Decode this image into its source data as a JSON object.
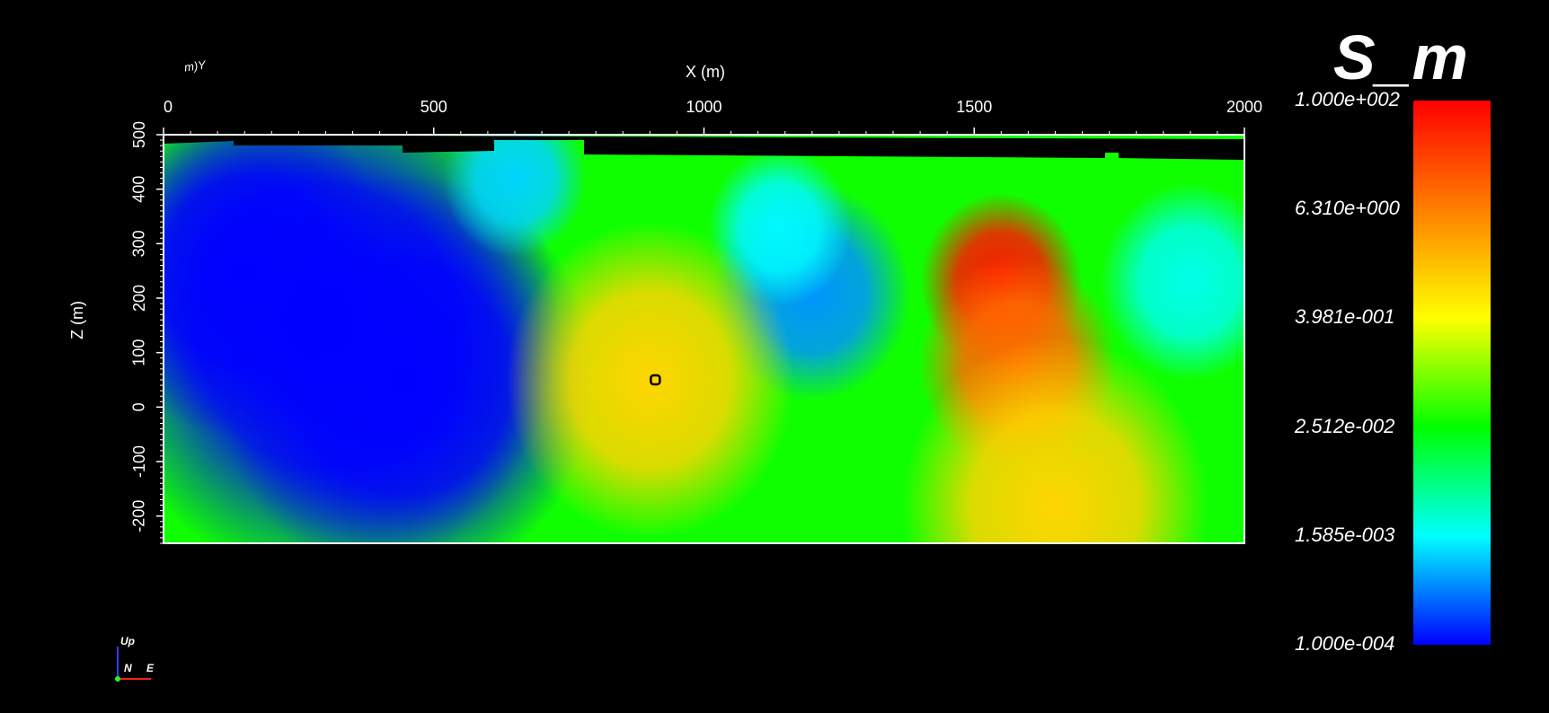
{
  "chart_data": {
    "type": "heatmap",
    "title": "",
    "xlabel": "X (m)",
    "ylabel": "Z (m)",
    "xlim": [
      0,
      2000
    ],
    "ylim": [
      -250,
      500
    ],
    "x_ticks": [
      "0",
      "500",
      "1000",
      "1500",
      "2000"
    ],
    "y_ticks": [
      "500",
      "400",
      "300",
      "200",
      "100",
      "0",
      "-100",
      "-200"
    ],
    "colorbar": {
      "title": "S_m",
      "scale": "log",
      "range": [
        0.0001,
        100
      ],
      "labels": [
        "1.000e+002",
        "6.310e+000",
        "3.981e-001",
        "2.512e-002",
        "1.585e-003",
        "1.000e-004"
      ],
      "colors": [
        "#ff0000",
        "#ff8000",
        "#ffff00",
        "#00ff00",
        "#00ffff",
        "#0000ff"
      ]
    },
    "field_blobs": [
      {
        "x": 300,
        "z": 150,
        "value": 0.0001
      },
      {
        "x": 150,
        "z": 250,
        "value": 0.0001
      },
      {
        "x": 450,
        "z": 50,
        "value": 0.0001
      },
      {
        "x": 650,
        "z": 420,
        "value": 0.001
      },
      {
        "x": 1200,
        "z": 210,
        "value": 0.0005
      },
      {
        "x": 1140,
        "z": 330,
        "value": 0.0015
      },
      {
        "x": 1550,
        "z": 230,
        "value": 60
      },
      {
        "x": 1580,
        "z": 80,
        "value": 10
      },
      {
        "x": 1900,
        "z": 230,
        "value": 0.002
      },
      {
        "x": 900,
        "z": 50,
        "value": 1
      },
      {
        "x": 1650,
        "z": -180,
        "value": 1
      }
    ],
    "marker": {
      "x": 910,
      "z": 50
    }
  },
  "axes_label_top_left": "m)Y",
  "orientation": {
    "up": "Up",
    "n": "N",
    "e": "E"
  }
}
